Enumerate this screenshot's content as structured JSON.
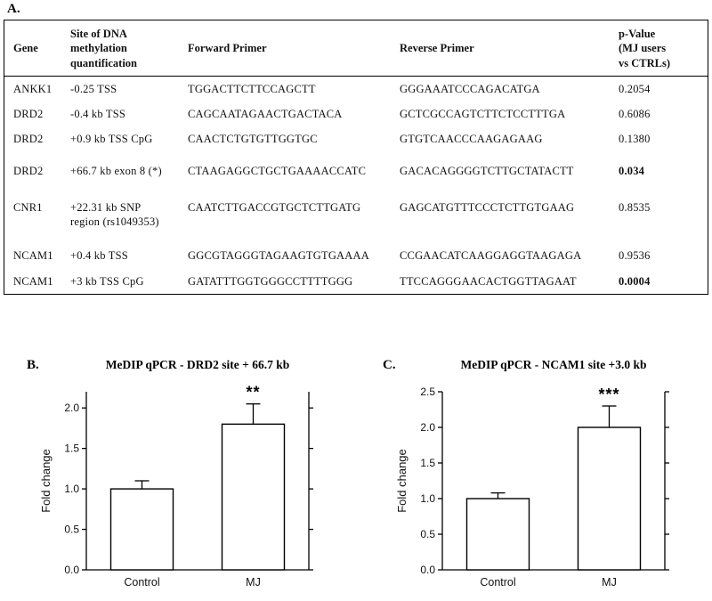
{
  "figure": {
    "panel_a_label": "A.",
    "panel_b_label": "B.",
    "panel_c_label": "C."
  },
  "table": {
    "headers": {
      "gene": "Gene",
      "site": "Site of DNA\nmethylation\nquantification",
      "forward": "Forward Primer",
      "reverse": "Reverse Primer",
      "pvalue": "p-Value\n(MJ users\nvs CTRLs)"
    },
    "rows": [
      {
        "gene": "ANKK1",
        "site": "-0.25 TSS",
        "forward": "TGGACTTCTTCCAGCTT",
        "reverse": "GGGAAATCCCAGACATGA",
        "pvalue": "0.2054",
        "bold": false
      },
      {
        "gene": "DRD2",
        "site": "-0.4 kb TSS",
        "forward": "CAGCAATAGAACTGACTACA",
        "reverse": "GCTCGCCAGTCTTCTCCTTTGA",
        "pvalue": "0.6086",
        "bold": false
      },
      {
        "gene": "DRD2",
        "site": "+0.9 kb TSS CpG",
        "forward": "CAACTCTGTGTTGGTGC",
        "reverse": "GTGTCAACCCAAGAGAAG",
        "pvalue": "0.1380",
        "bold": false
      },
      {
        "gene": "DRD2",
        "site": "+66.7 kb exon 8 (*)",
        "forward": "CTAAGAGGCTGCTGAAAACCATC",
        "reverse": "GACACAGGGGTCTTGCTATACTT",
        "pvalue": "0.034",
        "bold": true
      },
      {
        "gene": "CNR1",
        "site": "+22.31 kb SNP\nregion (rs1049353)",
        "forward": "CAATCTTGACCGTGCTCTTGATG",
        "reverse": "GAGCATGTTTCCCTCTTGTGAAG",
        "pvalue": "0.8535",
        "bold": false
      },
      {
        "gene": "NCAM1",
        "site": "+0.4 kb TSS",
        "forward": "GGCGTAGGGTAGAAGTGTGAAAA",
        "reverse": "CCGAACATCAAGGAGGTAAGAGA",
        "pvalue": "0.9536",
        "bold": false
      },
      {
        "gene": "NCAM1",
        "site": "+3 kb TSS CpG",
        "forward": "GATATTTGGTGGGCCTTTTGGG",
        "reverse": "TTCCAGGGAACACTGGTTAGAAT",
        "pvalue": "0.0004",
        "bold": true
      }
    ]
  },
  "chart_data": [
    {
      "type": "bar",
      "title": "MeDIP qPCR - DRD2 site + 66.7 kb",
      "categories": [
        "Control",
        "MJ"
      ],
      "values": [
        1.0,
        1.8
      ],
      "errors": [
        0.1,
        0.25
      ],
      "xlabel": "",
      "ylabel": "Fold change",
      "ylim": [
        0,
        2.2
      ],
      "yticks": [
        0.0,
        0.5,
        1.0,
        1.5,
        2.0
      ],
      "significance": "**",
      "grid": false,
      "legend": "none",
      "bar_fill": "#ffffff",
      "stroke": "#000000"
    },
    {
      "type": "bar",
      "title": "MeDIP qPCR - NCAM1 site +3.0 kb",
      "categories": [
        "Control",
        "MJ"
      ],
      "values": [
        1.0,
        2.0
      ],
      "errors": [
        0.08,
        0.3
      ],
      "xlabel": "",
      "ylabel": "Fold change",
      "ylim": [
        0,
        2.5
      ],
      "yticks": [
        0.0,
        0.5,
        1.0,
        1.5,
        2.0,
        2.5
      ],
      "significance": "***",
      "grid": false,
      "legend": "none",
      "bar_fill": "#ffffff",
      "stroke": "#000000"
    }
  ]
}
